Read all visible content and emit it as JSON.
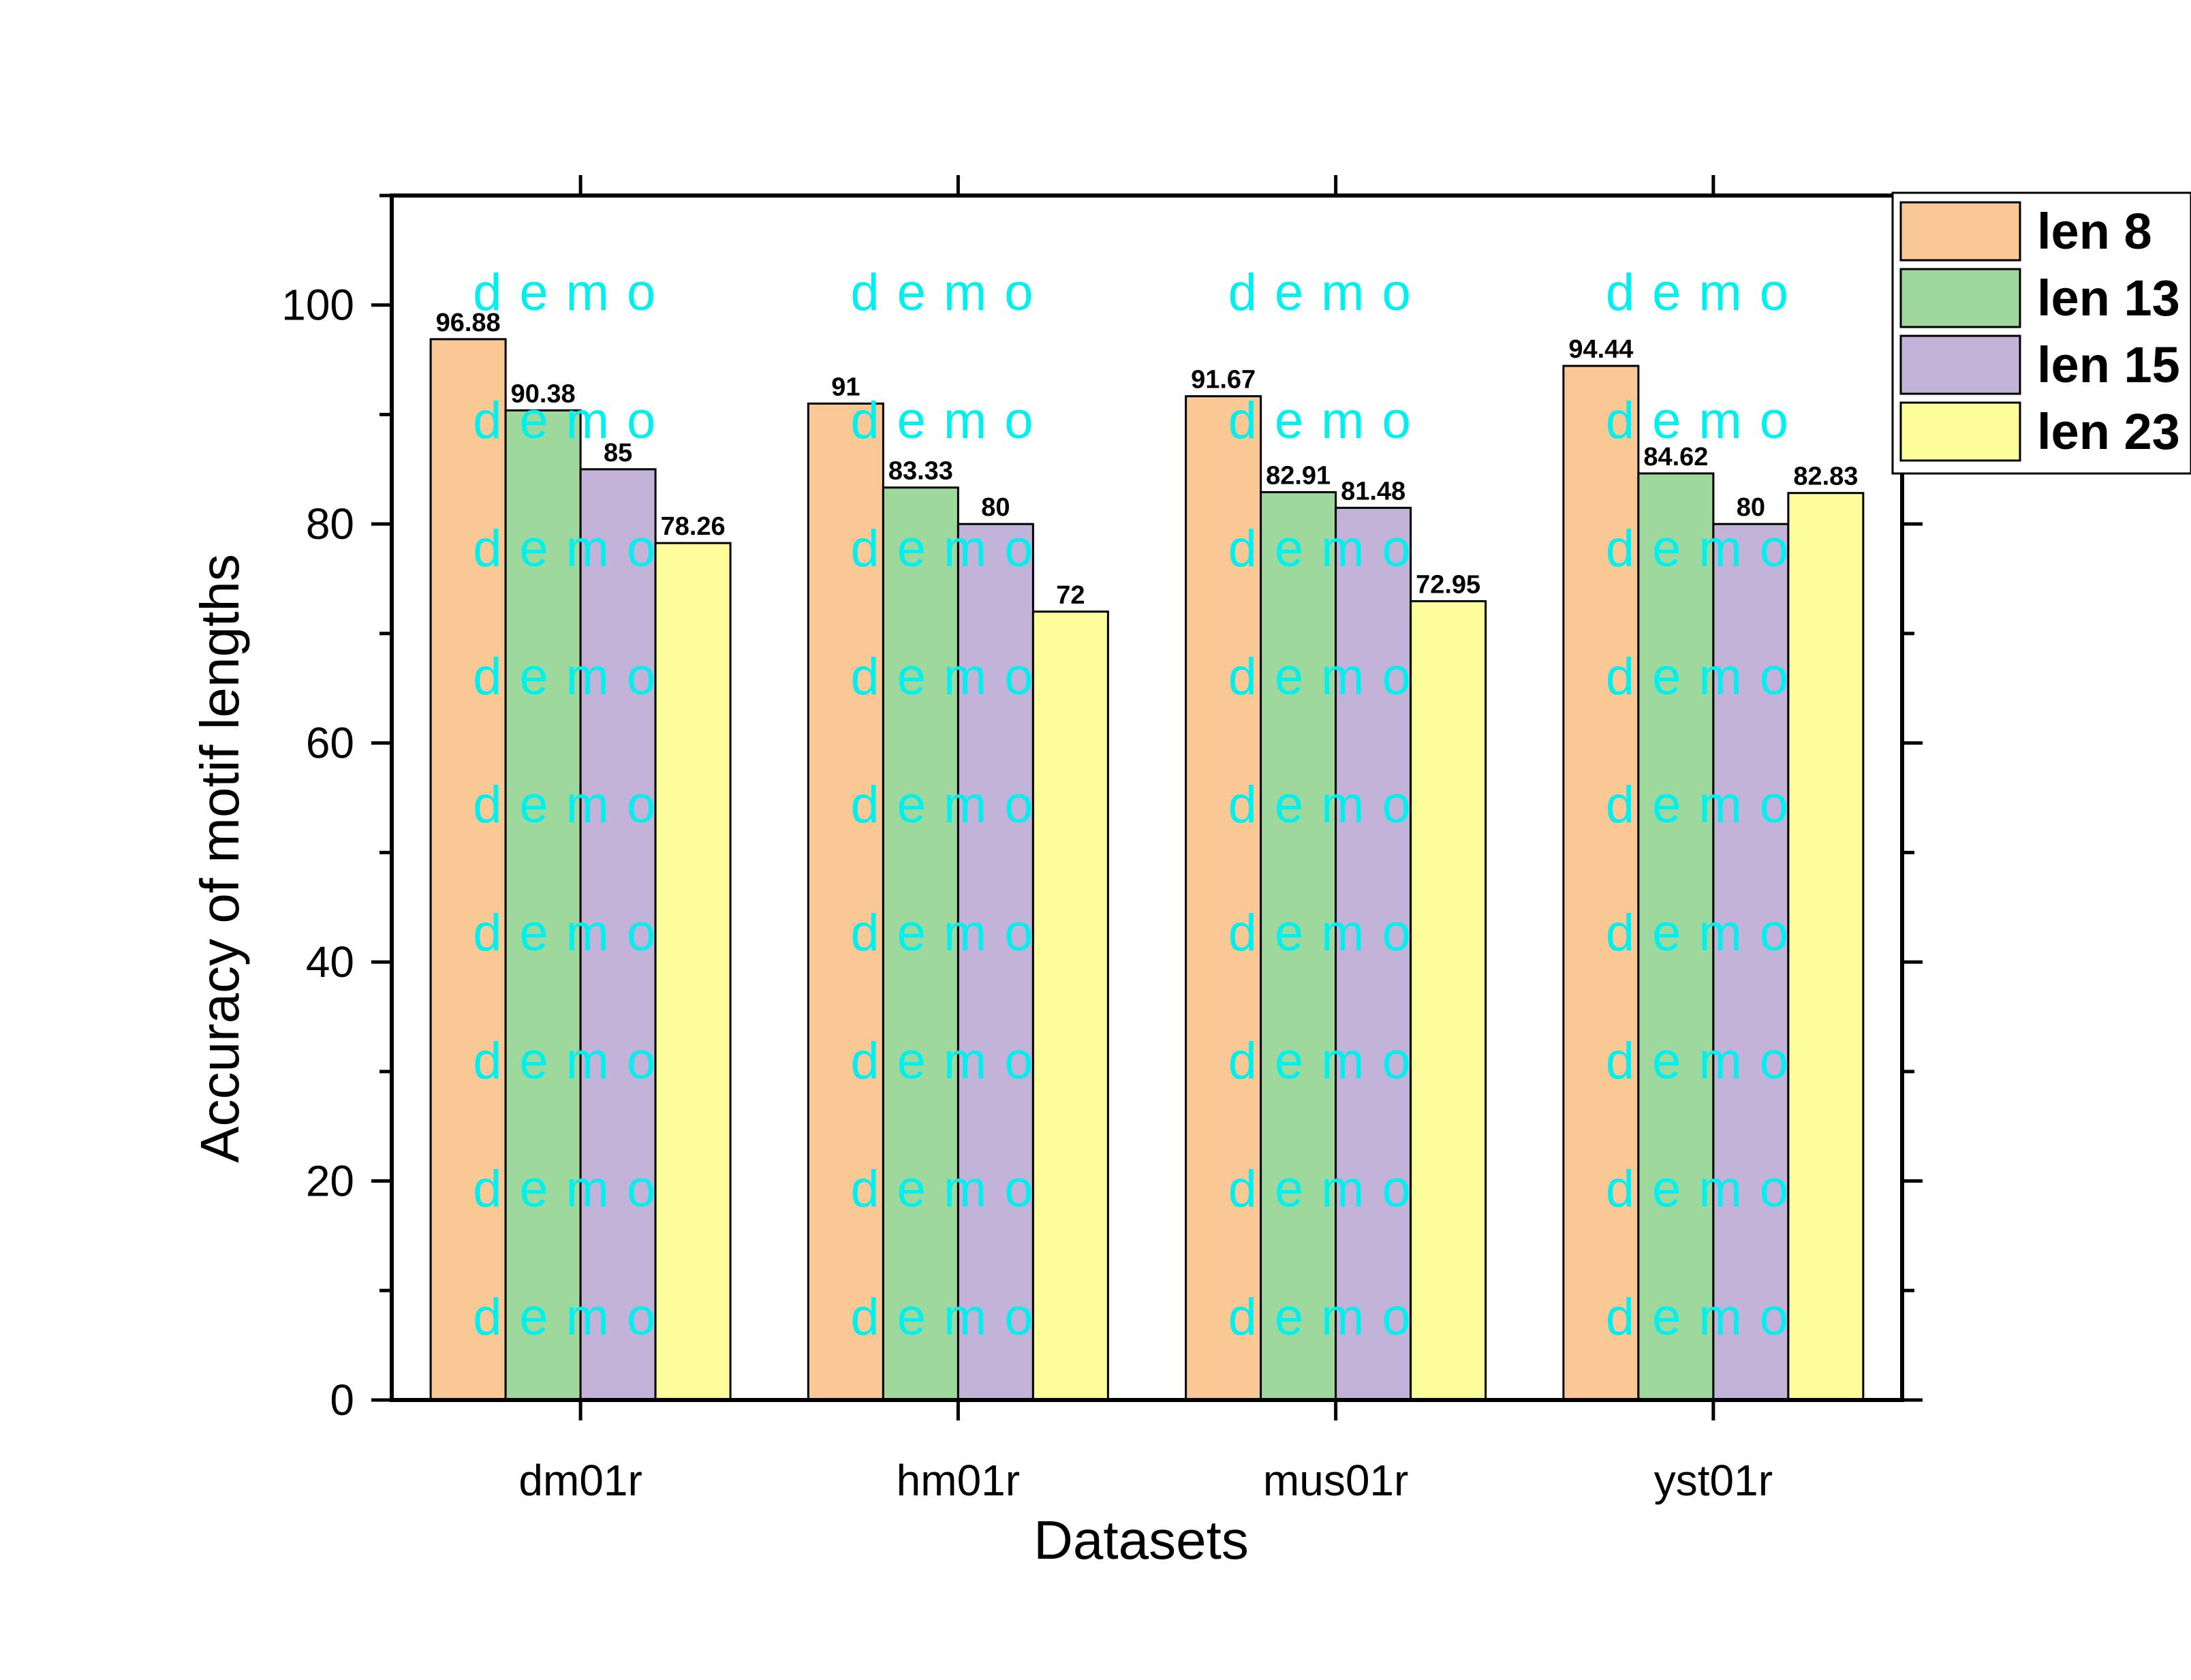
{
  "chart_data": {
    "type": "bar",
    "title": "",
    "xlabel": "Datasets",
    "ylabel": "Accuracy of motif lengths",
    "ylim": [
      0,
      110
    ],
    "yticks": [
      0,
      20,
      40,
      60,
      80,
      100
    ],
    "grid": false,
    "legend_position": "top-right",
    "categories": [
      "dm01r",
      "hm01r",
      "mus01r",
      "yst01r"
    ],
    "series": [
      {
        "name": "len 8",
        "color": "#f9c895",
        "values": [
          96.88,
          91,
          91.67,
          94.44
        ],
        "labels": [
          "96.88",
          "91",
          "91.67",
          "94.44"
        ]
      },
      {
        "name": "len 13",
        "color": "#9fd89c",
        "values": [
          90.38,
          83.33,
          82.91,
          84.62
        ],
        "labels": [
          "90.38",
          "83.33",
          "82.91",
          "84.62"
        ]
      },
      {
        "name": "len 15",
        "color": "#c3b3d9",
        "values": [
          85,
          80,
          81.48,
          80
        ],
        "labels": [
          "85",
          "80",
          "81.48",
          "80"
        ]
      },
      {
        "name": "len 23",
        "color": "#fdfd9b",
        "values": [
          78.26,
          72,
          72.95,
          82.83
        ],
        "labels": [
          "78.26",
          "72",
          "72.95",
          "82.83"
        ]
      }
    ],
    "watermark": "demo"
  }
}
